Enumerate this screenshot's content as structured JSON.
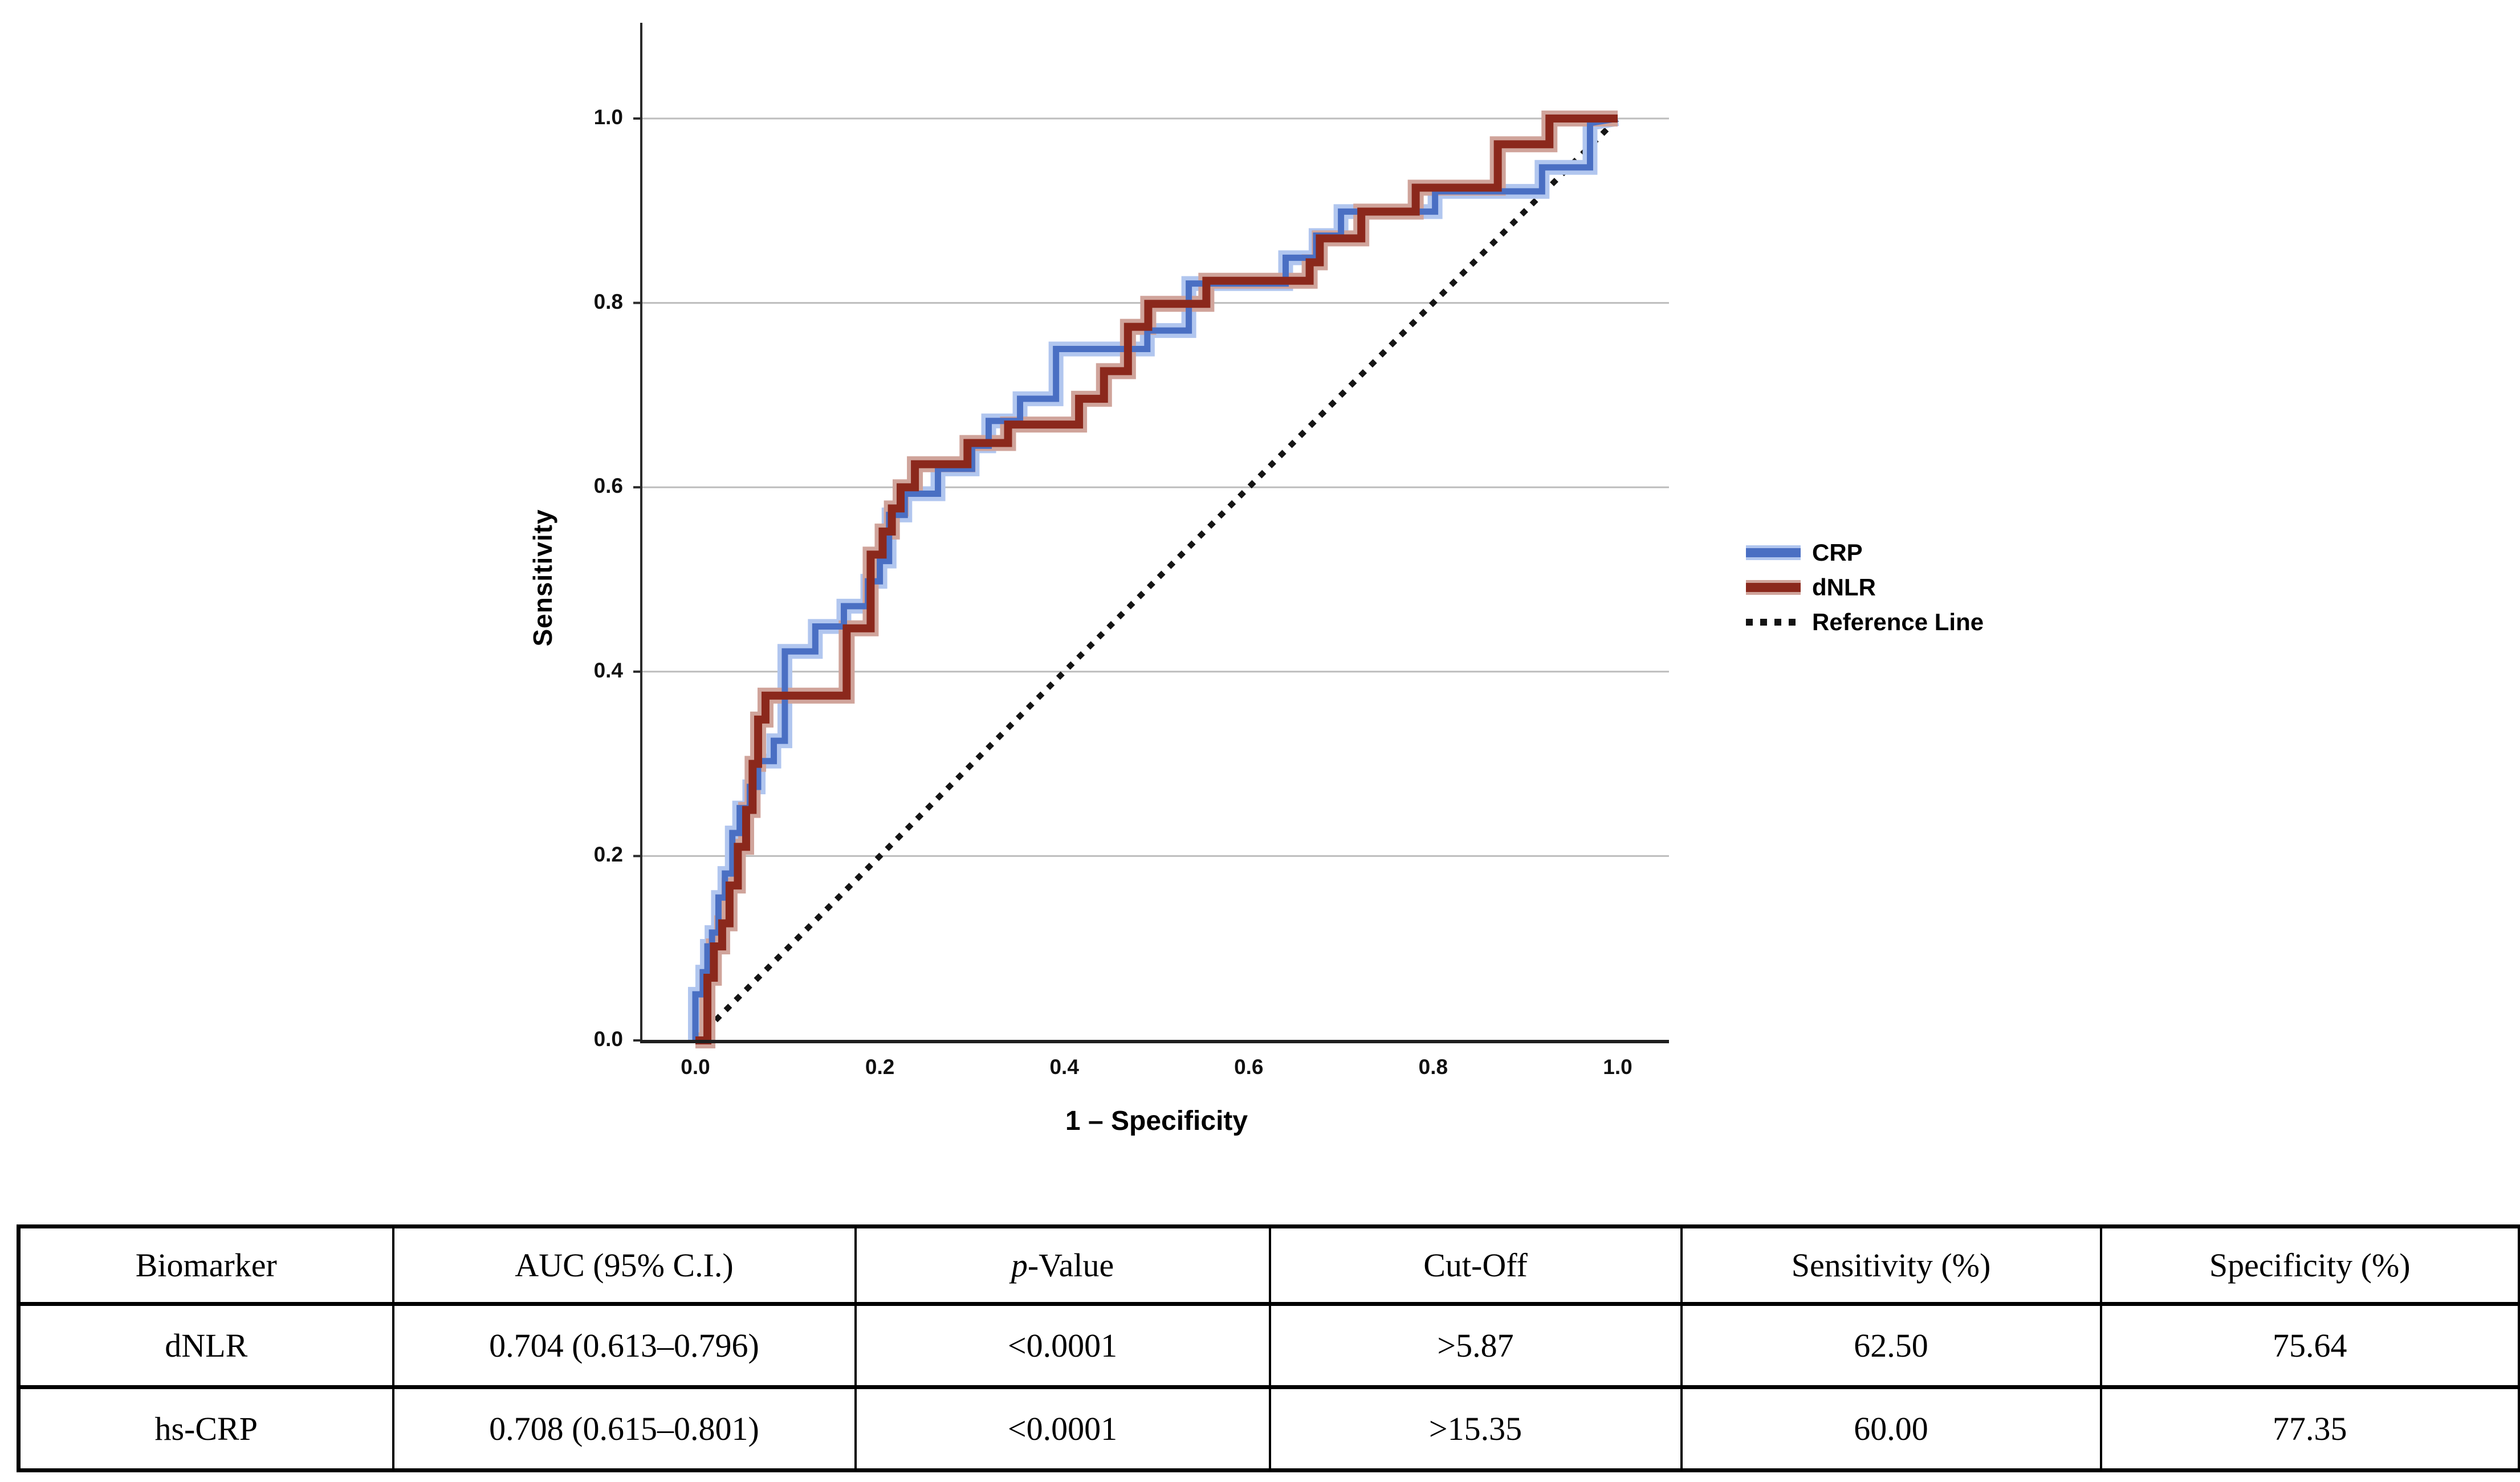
{
  "chart_data": {
    "type": "line",
    "subtype": "roc-step-curves",
    "title": "",
    "xlabel": "1 – Specificity",
    "ylabel": "Sensitivity",
    "xlim": [
      0,
      1
    ],
    "ylim": [
      0,
      1
    ],
    "grid": "horizontal-only",
    "x_ticks": [
      "0.0",
      "0.2",
      "0.4",
      "0.6",
      "0.8",
      "1.0"
    ],
    "y_ticks": [
      "0.0",
      "0.2",
      "0.4",
      "0.6",
      "0.8",
      "1.0"
    ],
    "legend": {
      "position": "right",
      "entries": [
        {
          "label": "CRP",
          "style": "solid",
          "color": "#4a6fc3",
          "halo": "#b1c6ef"
        },
        {
          "label": "dNLR",
          "style": "solid",
          "color": "#8b281c",
          "halo": "#d0a49b"
        },
        {
          "label": "Reference Line",
          "style": "dotted",
          "color": "#141414"
        }
      ]
    },
    "series": [
      {
        "name": "Reference Line",
        "style": "dotted",
        "color": "#141414",
        "points": [
          [
            0,
            0
          ],
          [
            1,
            1
          ]
        ]
      },
      {
        "name": "CRP",
        "style": "solid",
        "color": "#4a6fc3",
        "halo": "#b1c6ef",
        "points": [
          [
            0,
            0
          ],
          [
            0,
            0.05
          ],
          [
            0.008,
            0.05
          ],
          [
            0.008,
            0.074
          ],
          [
            0.013,
            0.074
          ],
          [
            0.013,
            0.102
          ],
          [
            0.018,
            0.102
          ],
          [
            0.018,
            0.117
          ],
          [
            0.025,
            0.117
          ],
          [
            0.025,
            0.155
          ],
          [
            0.032,
            0.155
          ],
          [
            0.032,
            0.181
          ],
          [
            0.04,
            0.181
          ],
          [
            0.04,
            0.225
          ],
          [
            0.048,
            0.225
          ],
          [
            0.048,
            0.252
          ],
          [
            0.059,
            0.252
          ],
          [
            0.059,
            0.275
          ],
          [
            0.068,
            0.275
          ],
          [
            0.068,
            0.303
          ],
          [
            0.085,
            0.303
          ],
          [
            0.085,
            0.325
          ],
          [
            0.097,
            0.325
          ],
          [
            0.097,
            0.422
          ],
          [
            0.13,
            0.422
          ],
          [
            0.13,
            0.449
          ],
          [
            0.161,
            0.449
          ],
          [
            0.161,
            0.471
          ],
          [
            0.187,
            0.471
          ],
          [
            0.187,
            0.498
          ],
          [
            0.2,
            0.498
          ],
          [
            0.2,
            0.52
          ],
          [
            0.21,
            0.52
          ],
          [
            0.21,
            0.57
          ],
          [
            0.227,
            0.57
          ],
          [
            0.227,
            0.593
          ],
          [
            0.263,
            0.593
          ],
          [
            0.263,
            0.62
          ],
          [
            0.3,
            0.62
          ],
          [
            0.3,
            0.645
          ],
          [
            0.318,
            0.645
          ],
          [
            0.318,
            0.672
          ],
          [
            0.352,
            0.672
          ],
          [
            0.352,
            0.696
          ],
          [
            0.391,
            0.696
          ],
          [
            0.391,
            0.75
          ],
          [
            0.49,
            0.75
          ],
          [
            0.49,
            0.77
          ],
          [
            0.535,
            0.77
          ],
          [
            0.535,
            0.821
          ],
          [
            0.64,
            0.821
          ],
          [
            0.64,
            0.849
          ],
          [
            0.673,
            0.849
          ],
          [
            0.673,
            0.873
          ],
          [
            0.7,
            0.873
          ],
          [
            0.7,
            0.899
          ],
          [
            0.802,
            0.899
          ],
          [
            0.802,
            0.921
          ],
          [
            0.918,
            0.921
          ],
          [
            0.918,
            0.947
          ],
          [
            0.97,
            0.947
          ],
          [
            0.97,
            0.995
          ],
          [
            1,
            1
          ]
        ]
      },
      {
        "name": "dNLR",
        "style": "solid",
        "color": "#8b281c",
        "halo": "#d0a49b",
        "points": [
          [
            0,
            0
          ],
          [
            0.013,
            0
          ],
          [
            0.013,
            0.068
          ],
          [
            0.02,
            0.068
          ],
          [
            0.02,
            0.102
          ],
          [
            0.029,
            0.102
          ],
          [
            0.029,
            0.127
          ],
          [
            0.037,
            0.127
          ],
          [
            0.037,
            0.168
          ],
          [
            0.046,
            0.168
          ],
          [
            0.046,
            0.21
          ],
          [
            0.055,
            0.21
          ],
          [
            0.055,
            0.25
          ],
          [
            0.062,
            0.25
          ],
          [
            0.062,
            0.3
          ],
          [
            0.068,
            0.3
          ],
          [
            0.068,
            0.348
          ],
          [
            0.076,
            0.348
          ],
          [
            0.076,
            0.374
          ],
          [
            0.164,
            0.374
          ],
          [
            0.164,
            0.447
          ],
          [
            0.19,
            0.447
          ],
          [
            0.19,
            0.527
          ],
          [
            0.203,
            0.527
          ],
          [
            0.203,
            0.552
          ],
          [
            0.213,
            0.552
          ],
          [
            0.213,
            0.577
          ],
          [
            0.2225,
            0.577
          ],
          [
            0.2225,
            0.6
          ],
          [
            0.238,
            0.6
          ],
          [
            0.238,
            0.625
          ],
          [
            0.295,
            0.625
          ],
          [
            0.295,
            0.648
          ],
          [
            0.339,
            0.648
          ],
          [
            0.339,
            0.668
          ],
          [
            0.416,
            0.668
          ],
          [
            0.416,
            0.696
          ],
          [
            0.443,
            0.696
          ],
          [
            0.443,
            0.726
          ],
          [
            0.469,
            0.726
          ],
          [
            0.469,
            0.774
          ],
          [
            0.491,
            0.774
          ],
          [
            0.491,
            0.799
          ],
          [
            0.554,
            0.799
          ],
          [
            0.554,
            0.824
          ],
          [
            0.666,
            0.824
          ],
          [
            0.666,
            0.844
          ],
          [
            0.677,
            0.844
          ],
          [
            0.677,
            0.87
          ],
          [
            0.722,
            0.87
          ],
          [
            0.722,
            0.899
          ],
          [
            0.781,
            0.899
          ],
          [
            0.781,
            0.925
          ],
          [
            0.87,
            0.925
          ],
          [
            0.87,
            0.972
          ],
          [
            0.926,
            0.972
          ],
          [
            0.926,
            1
          ],
          [
            1,
            1
          ]
        ]
      }
    ],
    "annotations": {
      "dnlr_operating_point": [
        0.2436,
        0.625
      ],
      "crp_operating_point": [
        0.2265,
        0.6
      ]
    }
  },
  "table": {
    "columns": [
      "Biomarker",
      "AUC (95% C.I.)",
      "p-Value",
      "Cut-Off",
      "Sensitivity (%)",
      "Specificity (%)"
    ],
    "p_italic": "p",
    "p_value_rest": "-Value",
    "rows": [
      {
        "cells": [
          "dNLR",
          "0.704 (0.613–0.796)",
          "<0.0001",
          ">5.87",
          "62.50",
          "75.64"
        ]
      },
      {
        "cells": [
          "hs-CRP",
          "0.708 (0.615–0.801)",
          "<0.0001",
          ">15.35",
          "60.00",
          "77.35"
        ]
      }
    ]
  },
  "colors": {
    "crp_line": "#4a6fc3",
    "dnlr_line": "#8b281c",
    "reference_line": "#141414",
    "gridline": "#bdbdbd",
    "axis": "#2b2b2b"
  }
}
